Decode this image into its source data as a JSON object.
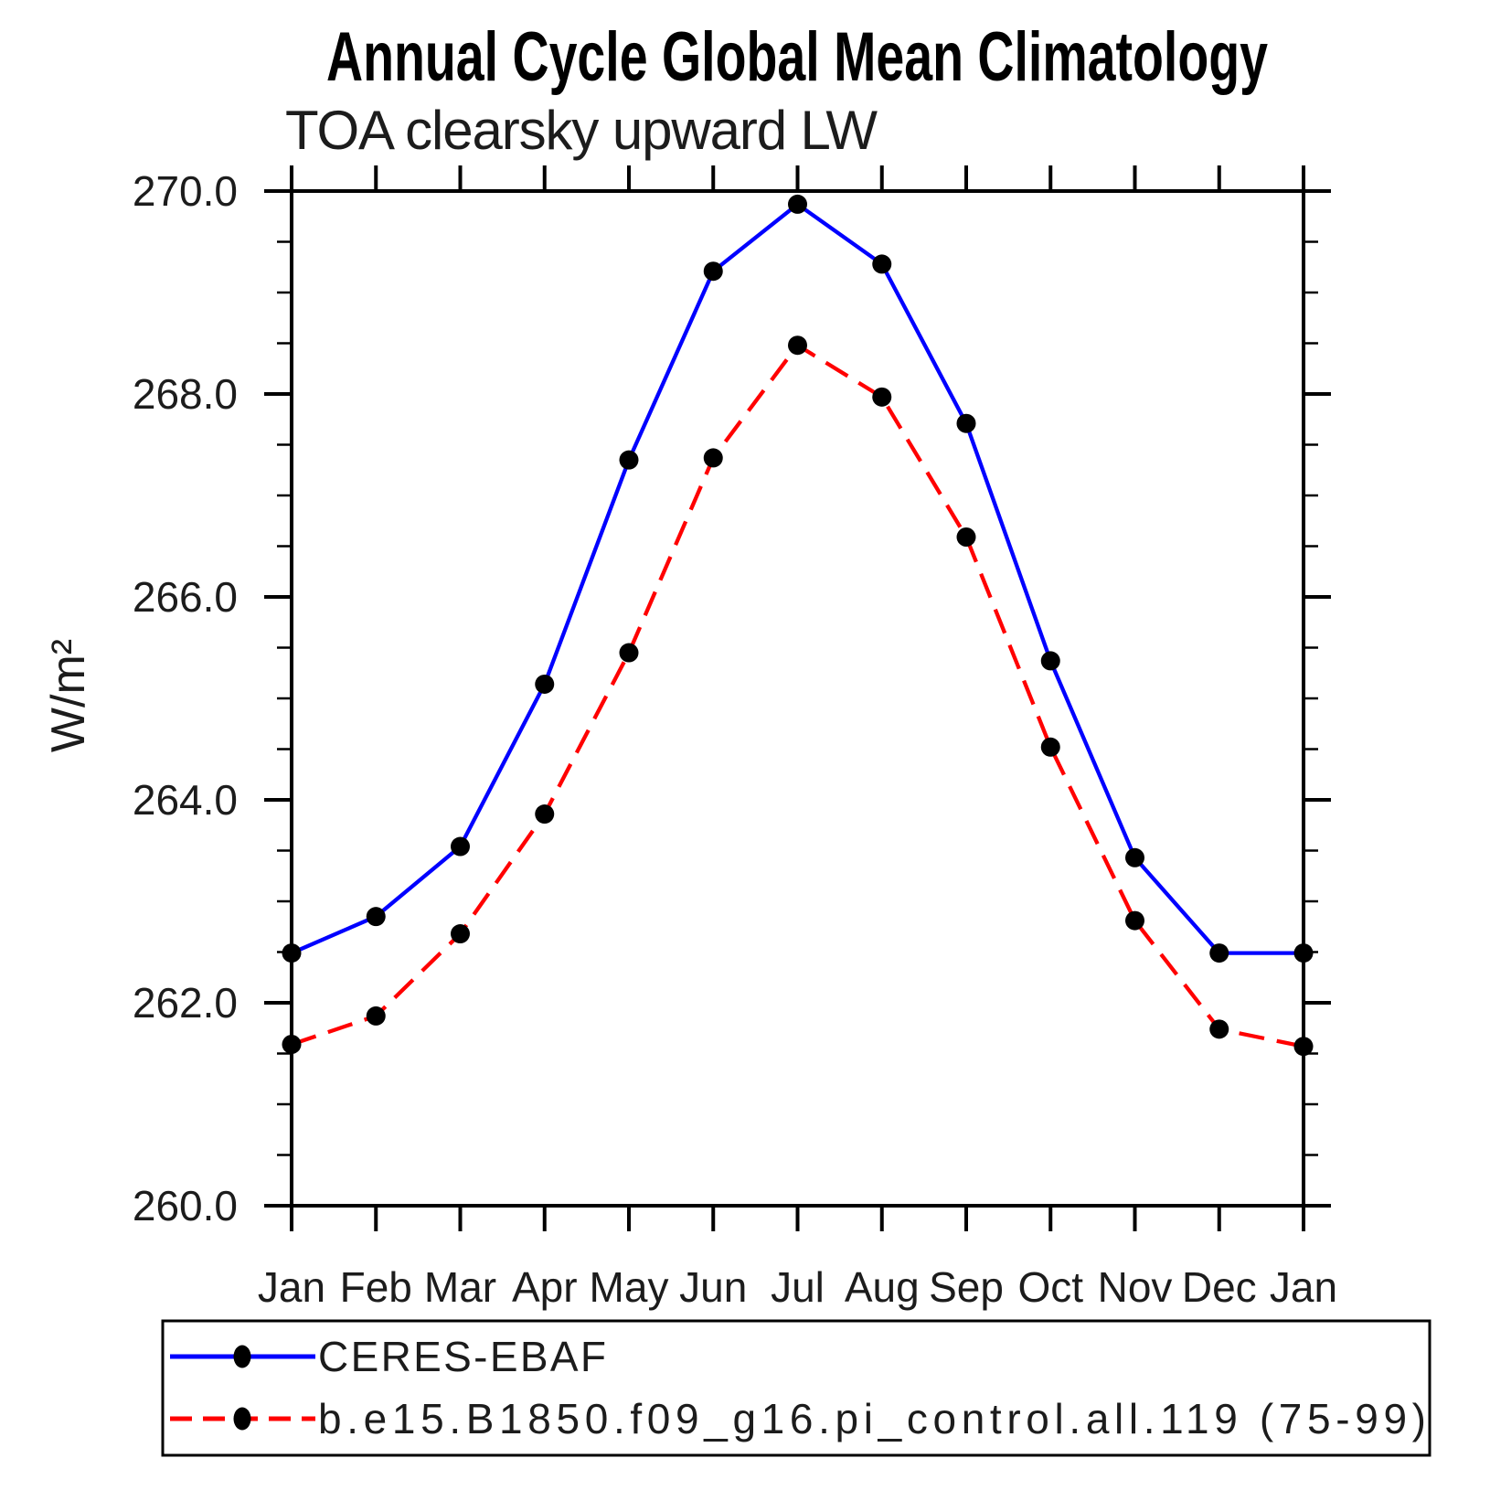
{
  "chart_data": {
    "type": "line",
    "title": "Annual Cycle Global Mean Climatology",
    "subtitle": "TOA clearsky upward LW",
    "ylabel": "W/m²",
    "xlabel": "",
    "x_categories": [
      "Jan",
      "Feb",
      "Mar",
      "Apr",
      "May",
      "Jun",
      "Jul",
      "Aug",
      "Sep",
      "Oct",
      "Nov",
      "Dec",
      "Jan"
    ],
    "ylim": [
      260.0,
      270.0
    ],
    "ytick_labels": [
      "260.0",
      "262.0",
      "264.0",
      "266.0",
      "268.0",
      "270.0"
    ],
    "ytick_major_interval": 2.0,
    "ytick_minor_interval": 0.5,
    "grid": false,
    "legend_position": "bottom-left-box",
    "marker": {
      "shape": "circle",
      "color": "#000000"
    },
    "series": [
      {
        "name": "CERES-EBAF",
        "color": "#0000ff",
        "style": "solid",
        "marker": "black-circle",
        "values": [
          262.49,
          262.85,
          263.54,
          265.14,
          267.35,
          269.21,
          269.87,
          269.28,
          267.71,
          265.37,
          263.43,
          262.49,
          262.49
        ]
      },
      {
        "name": "b.e15.B1850.f09_g16.pi_control.all.119 (75-99)",
        "color": "#ff0000",
        "style": "dashed",
        "marker": "black-circle",
        "values": [
          261.59,
          261.87,
          262.68,
          263.86,
          265.45,
          267.37,
          268.48,
          267.97,
          266.59,
          264.52,
          262.81,
          261.74,
          261.57
        ]
      }
    ]
  }
}
